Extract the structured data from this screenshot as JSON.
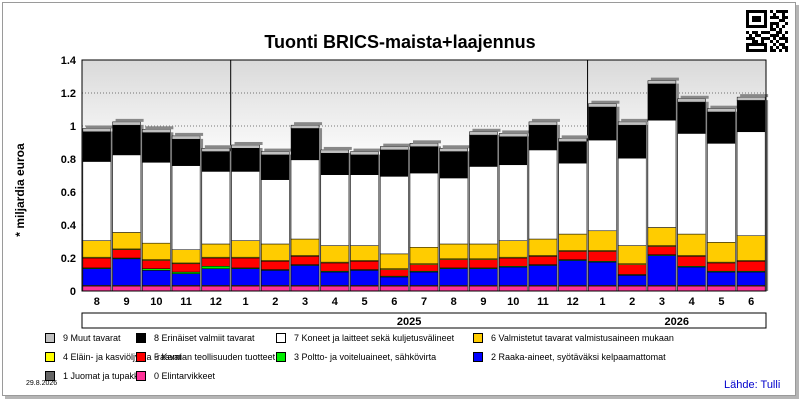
{
  "title": "Tuonti BRICS-maista+laajennus",
  "date": "29.8.2026",
  "source": "Lähde: Tulli",
  "chart_data": {
    "type": "bar",
    "stacked": true,
    "ylabel": "* miljardia euroa",
    "ylim": [
      0,
      1.4
    ],
    "yticks": [
      "0",
      "0.2",
      "0.4",
      "0.6",
      "0.8",
      "1",
      "1.2",
      "1.4"
    ],
    "categories": [
      "8",
      "9",
      "10",
      "11",
      "12",
      "1",
      "2",
      "3",
      "4",
      "5",
      "6",
      "7",
      "8",
      "9",
      "10",
      "11",
      "12",
      "1",
      "2",
      "3",
      "4",
      "5",
      "6"
    ],
    "year_labels": [
      {
        "label": "2025",
        "start": 5,
        "end": 16
      },
      {
        "label": "2026",
        "start": 17,
        "end": 22
      }
    ],
    "series": [
      {
        "name": "0 Elintarvikkeet",
        "color": "#ff3399",
        "values": [
          0.03,
          0.03,
          0.03,
          0.03,
          0.03,
          0.03,
          0.03,
          0.03,
          0.03,
          0.03,
          0.03,
          0.03,
          0.03,
          0.03,
          0.03,
          0.03,
          0.03,
          0.03,
          0.03,
          0.03,
          0.03,
          0.03,
          0.03
        ]
      },
      {
        "name": "1 Juomat ja tupakka",
        "color": "#666666",
        "values": [
          0.005,
          0.005,
          0.005,
          0.005,
          0.005,
          0.005,
          0.005,
          0.005,
          0.005,
          0.005,
          0.005,
          0.005,
          0.005,
          0.005,
          0.005,
          0.005,
          0.005,
          0.005,
          0.005,
          0.005,
          0.005,
          0.005,
          0.005
        ]
      },
      {
        "name": "2 Raaka-aineet, syötäväksi kelpaamattomat",
        "color": "#0000ff",
        "values": [
          0.1,
          0.16,
          0.09,
          0.07,
          0.1,
          0.1,
          0.09,
          0.12,
          0.08,
          0.09,
          0.05,
          0.08,
          0.1,
          0.1,
          0.11,
          0.12,
          0.15,
          0.14,
          0.06,
          0.18,
          0.11,
          0.08,
          0.08
        ]
      },
      {
        "name": "3 Poltto- ja voiteluaineet, sähkövirta",
        "color": "#00ee00",
        "values": [
          0.005,
          0.005,
          0.01,
          0.01,
          0.015,
          0.005,
          0.005,
          0.005,
          0.005,
          0.005,
          0.005,
          0.005,
          0.005,
          0.005,
          0.005,
          0.005,
          0.005,
          0.005,
          0.005,
          0.005,
          0.005,
          0.005,
          0.005
        ]
      },
      {
        "name": "5 Kemian teollisuuden tuotteet",
        "color": "#ff0000",
        "values": [
          0.06,
          0.05,
          0.05,
          0.05,
          0.05,
          0.06,
          0.05,
          0.05,
          0.05,
          0.05,
          0.04,
          0.04,
          0.05,
          0.05,
          0.05,
          0.05,
          0.05,
          0.06,
          0.06,
          0.05,
          0.06,
          0.05,
          0.06
        ]
      },
      {
        "name": "4 Eläin- ja kasviöljyt ja -rasvat",
        "color": "#ffff00",
        "values": [
          0.005,
          0.005,
          0.005,
          0.005,
          0.005,
          0.005,
          0.005,
          0.005,
          0.005,
          0.005,
          0.005,
          0.005,
          0.005,
          0.005,
          0.005,
          0.005,
          0.005,
          0.005,
          0.005,
          0.005,
          0.005,
          0.005,
          0.005
        ]
      },
      {
        "name": "6 Valmistetut tavarat valmistusaineen mukaan",
        "color": "#ffcc00",
        "values": [
          0.1,
          0.1,
          0.1,
          0.08,
          0.08,
          0.1,
          0.1,
          0.1,
          0.1,
          0.09,
          0.09,
          0.1,
          0.09,
          0.09,
          0.1,
          0.1,
          0.1,
          0.12,
          0.11,
          0.11,
          0.13,
          0.12,
          0.15
        ]
      },
      {
        "name": "7 Koneet ja laitteet sekä kuljetusvälineet",
        "color": "#ffffff",
        "values": [
          0.48,
          0.47,
          0.49,
          0.51,
          0.44,
          0.42,
          0.39,
          0.48,
          0.43,
          0.43,
          0.47,
          0.45,
          0.4,
          0.47,
          0.46,
          0.54,
          0.43,
          0.55,
          0.53,
          0.65,
          0.61,
          0.6,
          0.63
        ]
      },
      {
        "name": "8 Erinäiset valmiit tavarat",
        "color": "#000000",
        "values": [
          0.18,
          0.18,
          0.18,
          0.16,
          0.12,
          0.14,
          0.15,
          0.19,
          0.13,
          0.12,
          0.16,
          0.16,
          0.16,
          0.19,
          0.17,
          0.15,
          0.13,
          0.2,
          0.2,
          0.22,
          0.19,
          0.19,
          0.19
        ]
      },
      {
        "name": "9 Muut tavarat",
        "color": "#c0c0c0",
        "values": [
          0.02,
          0.02,
          0.02,
          0.02,
          0.02,
          0.02,
          0.02,
          0.02,
          0.02,
          0.02,
          0.02,
          0.02,
          0.02,
          0.02,
          0.02,
          0.02,
          0.02,
          0.02,
          0.02,
          0.02,
          0.02,
          0.02,
          0.02
        ]
      }
    ],
    "legend_order": [
      9,
      8,
      7,
      6,
      4,
      5,
      3,
      2,
      1,
      0
    ],
    "grid": true
  }
}
